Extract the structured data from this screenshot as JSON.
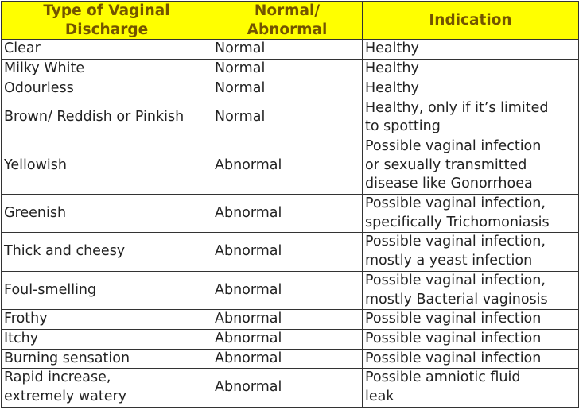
{
  "table": {
    "header": [
      [
        "Type of Vaginal",
        "Discharge"
      ],
      [
        "Normal/",
        "Abnormal"
      ],
      [
        "Indication"
      ]
    ],
    "rows": [
      [
        [
          "Clear"
        ],
        [
          "Normal"
        ],
        [
          "Healthy"
        ]
      ],
      [
        [
          "Milky White"
        ],
        [
          "Normal"
        ],
        [
          "Healthy"
        ]
      ],
      [
        [
          "Odourless"
        ],
        [
          "Normal"
        ],
        [
          "Healthy"
        ]
      ],
      [
        [
          "Brown/ Reddish or Pinkish"
        ],
        [
          "Normal"
        ],
        [
          "Healthy, only if it’s limited",
          "to spotting"
        ]
      ],
      [
        [
          "Yellowish"
        ],
        [
          "Abnormal"
        ],
        [
          "Possible vaginal infection",
          "or sexually transmitted",
          "disease like Gonorrhoea"
        ]
      ],
      [
        [
          "Greenish"
        ],
        [
          "Abnormal"
        ],
        [
          "Possible vaginal infection,",
          "specifically Trichomoniasis"
        ]
      ],
      [
        [
          "Thick and cheesy"
        ],
        [
          "Abnormal"
        ],
        [
          "Possible vaginal infection,",
          "mostly a yeast infection"
        ]
      ],
      [
        [
          "Foul-smelling"
        ],
        [
          "Abnormal"
        ],
        [
          "Possible vaginal infection,",
          "mostly Bacterial vaginosis"
        ]
      ],
      [
        [
          "Frothy"
        ],
        [
          "Abnormal"
        ],
        [
          "Possible vaginal infection"
        ]
      ],
      [
        [
          "Itchy"
        ],
        [
          "Abnormal"
        ],
        [
          "Possible vaginal infection"
        ]
      ],
      [
        [
          "Burning sensation"
        ],
        [
          "Abnormal"
        ],
        [
          "Possible vaginal infection"
        ]
      ],
      [
        [
          "Rapid increase,",
          "extremely watery"
        ],
        [
          "Abnormal"
        ],
        [
          "Possible amniotic fluid",
          "leak"
        ]
      ]
    ]
  }
}
